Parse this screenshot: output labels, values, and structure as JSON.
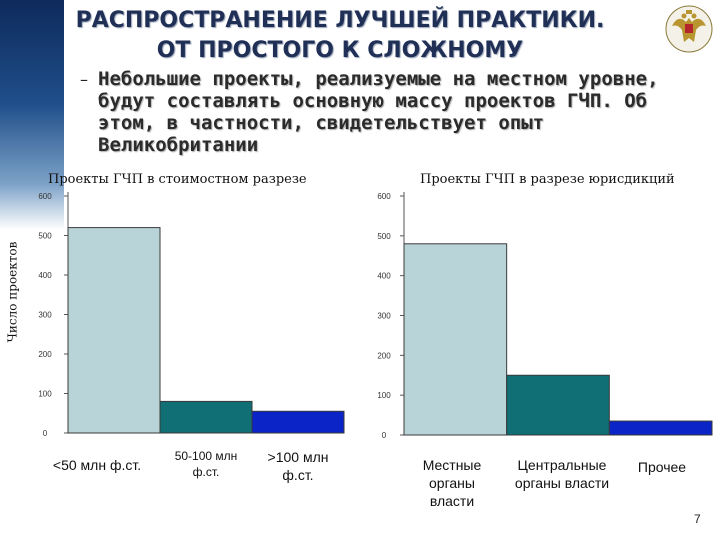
{
  "slide": {
    "title_line1": "РАСПРОСТРАНЕНИЕ ЛУЧШЕЙ ПРАКТИКИ.",
    "title_line2": "ОТ ПРОСТОГО К СЛОЖНОМУ",
    "bullet_dash": "–",
    "bullet_text": "Небольшие проекты, реализуемые на местном уровне, будут составлять основную массу проектов ГЧП. Об этом, в частности, свидетельствует опыт Великобритании",
    "page_number": "7",
    "emblem_icon": "double-headed-eagle-emblem"
  },
  "chart_data": [
    {
      "type": "bar",
      "title": "Проекты ГЧП в стоимостном разрезе",
      "ylabel": "Число проектов",
      "categories": [
        "<50 млн ф.ст.",
        "50-100 млн ф.ст.",
        ">100 млн ф.ст."
      ],
      "values": [
        520,
        80,
        55
      ],
      "ylim": [
        0,
        600
      ],
      "yticks": [
        "0",
        "100",
        "200",
        "300",
        "400",
        "500",
        "600"
      ],
      "colors": [
        "#b9d4d8",
        "#0f6f74",
        "#0a24c8"
      ]
    },
    {
      "type": "bar",
      "title": "Проекты ГЧП в разрезе юрисдикций",
      "ylabel": "",
      "categories": [
        "Местные органы власти",
        "Центральные органы власти",
        "Прочее"
      ],
      "values": [
        480,
        150,
        35
      ],
      "ylim": [
        0,
        600
      ],
      "yticks": [
        "0",
        "100",
        "200",
        "300",
        "400",
        "500",
        "600"
      ],
      "colors": [
        "#b9d4d8",
        "#0f6f74",
        "#0a24c8"
      ]
    }
  ]
}
